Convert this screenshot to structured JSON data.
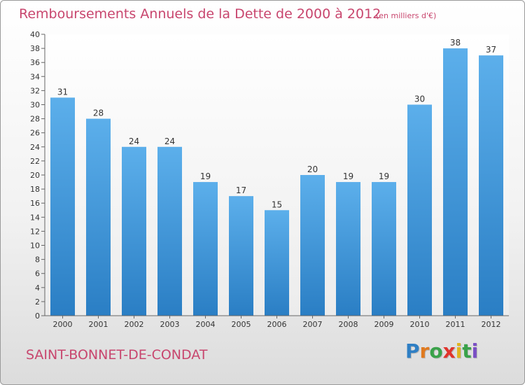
{
  "title": "Remboursements Annuels de la Dette de 2000 à 2012",
  "title_note": "(en milliers d'€)",
  "commune": "SAINT-BONNET-DE-CONDAT",
  "logo": {
    "letters": [
      "P",
      "r",
      "o",
      "x",
      "i",
      "t",
      "i"
    ],
    "colors": [
      "#2f7fc4",
      "#e07a1f",
      "#3aa24a",
      "#e0342c",
      "#e0b41f",
      "#3aa24a",
      "#7a4fc4"
    ]
  },
  "colors": {
    "bar": "#3f97dd",
    "accent": "#c8466e"
  },
  "chart_data": {
    "type": "bar",
    "title": "Remboursements Annuels de la Dette de 2000 à 2012",
    "subtitle": "(en milliers d'€)",
    "xlabel": "",
    "ylabel": "",
    "categories": [
      "2000",
      "2001",
      "2002",
      "2003",
      "2004",
      "2005",
      "2006",
      "2007",
      "2008",
      "2009",
      "2010",
      "2011",
      "2012"
    ],
    "values": [
      31,
      28,
      24,
      24,
      19,
      17,
      15,
      20,
      19,
      19,
      30,
      38,
      37
    ],
    "ylim": [
      0,
      40
    ],
    "yticks": [
      0,
      2,
      4,
      6,
      8,
      10,
      12,
      14,
      16,
      18,
      20,
      22,
      24,
      26,
      28,
      30,
      32,
      34,
      36,
      38,
      40
    ],
    "grid": false,
    "legend": "none"
  }
}
